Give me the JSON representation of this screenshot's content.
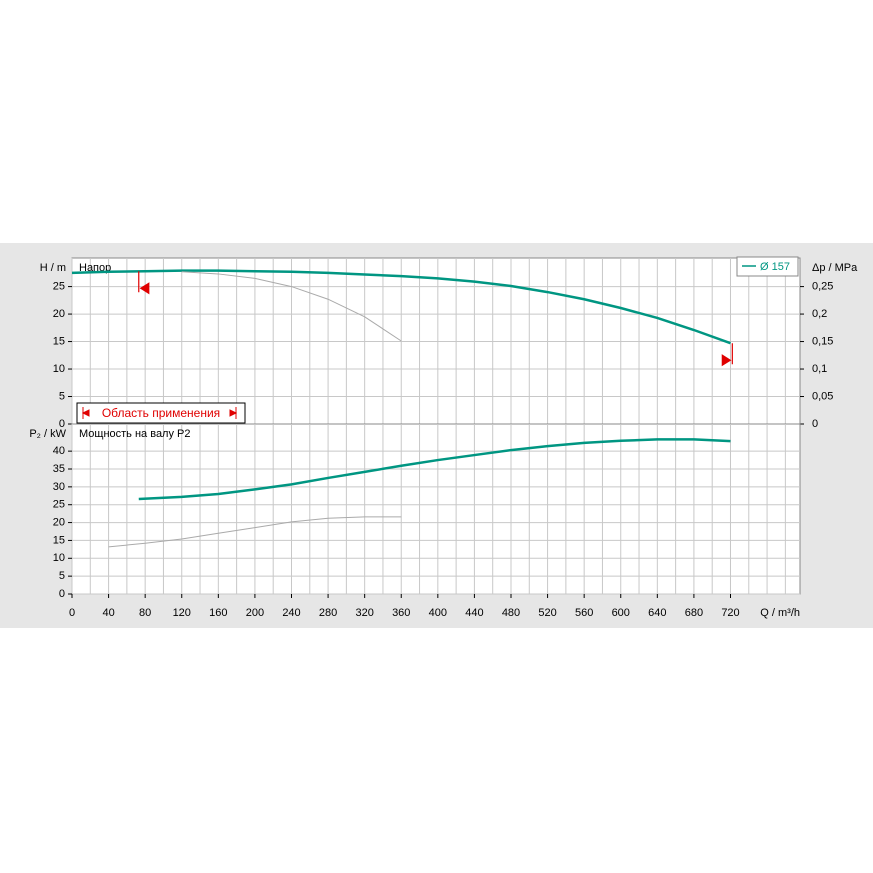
{
  "chart_data": [
    {
      "type": "line",
      "title": "Напор",
      "ylabel": "H / m",
      "y2label": "Δp / MPa",
      "xlim": [
        0,
        796
      ],
      "xgrid": [
        0,
        20,
        40,
        60,
        80,
        100,
        120,
        140,
        160,
        180,
        200,
        220,
        240,
        260,
        280,
        300,
        320,
        340,
        360,
        380,
        400,
        420,
        440,
        460,
        480,
        500,
        520,
        540,
        560,
        580,
        600,
        620,
        640,
        660,
        680,
        700,
        720,
        740,
        760,
        780
      ],
      "ylim": [
        0,
        30.2
      ],
      "yticks": [
        0,
        5,
        10,
        15,
        20,
        25
      ],
      "y2lim": [
        0,
        0.302
      ],
      "y2ticks": [
        0,
        {
          "value": 0.05,
          "label": "0,05"
        },
        {
          "value": 0.1,
          "label": "0,1"
        },
        {
          "value": 0.15,
          "label": "0,15"
        },
        {
          "value": 0.2,
          "label": "0,2"
        },
        {
          "value": 0.25,
          "label": "0,25"
        }
      ],
      "annotation": "Область применения",
      "operating_range": [
        73,
        722
      ],
      "series": [
        {
          "name": "Ø 157",
          "color": "#009682",
          "x": [
            0,
            40,
            80,
            120,
            160,
            200,
            240,
            280,
            320,
            360,
            400,
            440,
            480,
            520,
            560,
            600,
            640,
            680,
            720
          ],
          "values": [
            27.5,
            27.7,
            27.8,
            27.9,
            27.9,
            27.8,
            27.7,
            27.5,
            27.2,
            26.9,
            26.5,
            25.9,
            25.1,
            24,
            22.7,
            21.1,
            19.3,
            17.1,
            14.7
          ]
        },
        {
          "color": "#aaaaaa",
          "x": [
            120,
            160,
            200,
            240,
            280,
            320,
            360
          ],
          "values": [
            27.7,
            27.3,
            26.5,
            25,
            22.7,
            19.5,
            15.1
          ]
        }
      ]
    },
    {
      "type": "line",
      "title": "Мощность на валу P2",
      "ylabel": "P₂ / kW",
      "xlabel": "Q / m³/h",
      "xlim": [
        0,
        796
      ],
      "xticks": [
        0,
        40,
        80,
        120,
        160,
        200,
        240,
        280,
        320,
        360,
        400,
        440,
        480,
        520,
        560,
        600,
        640,
        680,
        720
      ],
      "xgrid": [
        0,
        20,
        40,
        60,
        80,
        100,
        120,
        140,
        160,
        180,
        200,
        220,
        240,
        260,
        280,
        300,
        320,
        340,
        360,
        380,
        400,
        420,
        440,
        460,
        480,
        500,
        520,
        540,
        560,
        580,
        600,
        620,
        640,
        660,
        680,
        700,
        720,
        740,
        760,
        780
      ],
      "ylim": [
        0,
        47.6
      ],
      "yticks": [
        0,
        5,
        10,
        15,
        20,
        25,
        30,
        35,
        40
      ],
      "series": [
        {
          "color": "#009682",
          "x": [
            73,
            120,
            160,
            200,
            240,
            280,
            320,
            360,
            400,
            440,
            480,
            520,
            560,
            600,
            640,
            680,
            720
          ],
          "values": [
            26.6,
            27.2,
            28,
            29.3,
            30.7,
            32.5,
            34.2,
            35.9,
            37.5,
            38.9,
            40.3,
            41.4,
            42.3,
            42.9,
            43.3,
            43.3,
            42.8
          ]
        },
        {
          "color": "#aaaaaa",
          "x": [
            40,
            80,
            120,
            160,
            200,
            240,
            280,
            320,
            360
          ],
          "values": [
            13.2,
            14.2,
            15.4,
            17,
            18.6,
            20.2,
            21.2,
            21.6,
            21.6
          ]
        }
      ]
    }
  ]
}
